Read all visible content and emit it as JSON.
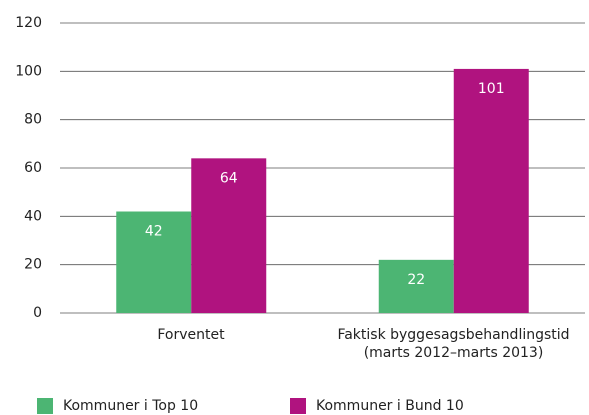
{
  "chart_data": {
    "type": "bar",
    "categories": [
      "Forventet",
      "Faktisk byggesagsbehandlingstid\n(marts 2012–marts 2013)"
    ],
    "series": [
      {
        "name": "Kommuner i Top 10",
        "color": "#4cb573",
        "values": [
          42,
          22
        ]
      },
      {
        "name": "Kommuner i Bund 10",
        "color": "#b0137f",
        "values": [
          64,
          101
        ]
      }
    ],
    "ylim": [
      0,
      120
    ],
    "yticks": [
      0,
      20,
      40,
      60,
      80,
      100,
      120
    ],
    "grid": true,
    "legend": "bottom"
  }
}
